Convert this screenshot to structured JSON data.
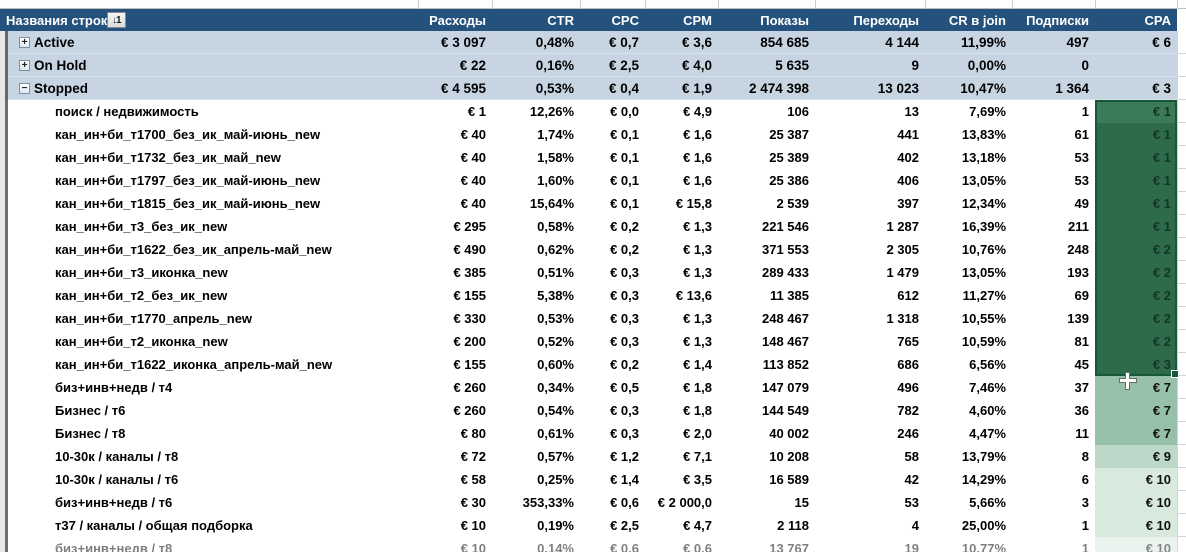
{
  "colors": {
    "header_bg": "#25527C",
    "header_text": "#FFFFFF",
    "group_row_bg": "#C7D5E2",
    "cpa_selected_green": "#2E6B4A",
    "cpa_selection_border": "#17573A",
    "cpa_green_mid": "#96C0A8",
    "cpa_green_light": "#BDD8C8",
    "cpa_green_pale": "#D8E9DE"
  },
  "header": {
    "row_label": "Названия строк",
    "filter_icon_label": "↓1",
    "columns": [
      {
        "key": "expenses",
        "label": "Расходы"
      },
      {
        "key": "ctr",
        "label": "CTR"
      },
      {
        "key": "cpc",
        "label": "CPC"
      },
      {
        "key": "cpm",
        "label": "CPM"
      },
      {
        "key": "impressions",
        "label": "Показы"
      },
      {
        "key": "clicks",
        "label": "Переходы"
      },
      {
        "key": "cr_join",
        "label": "CR в join"
      },
      {
        "key": "subs",
        "label": "Подписки"
      },
      {
        "key": "cpa",
        "label": "CPA"
      }
    ]
  },
  "summary_rows": [
    {
      "label": "Active",
      "expand": "collapsed",
      "values": [
        "€ 3 097",
        "0,48%",
        "€ 0,7",
        "€ 3,6",
        "854 685",
        "4 144",
        "11,99%",
        "497",
        "€ 6"
      ]
    },
    {
      "label": "On Hold",
      "expand": "collapsed",
      "values": [
        "€ 22",
        "0,16%",
        "€ 2,5",
        "€ 4,0",
        "5 635",
        "9",
        "0,00%",
        "0",
        ""
      ]
    },
    {
      "label": "Stopped",
      "expand": "expanded",
      "values": [
        "€ 4 595",
        "0,53%",
        "€ 0,4",
        "€ 1,9",
        "2 474 398",
        "13 023",
        "10,47%",
        "1 364",
        "€ 3"
      ]
    }
  ],
  "detail_rows": [
    {
      "label": "поиск / недвижимость",
      "values": [
        "€ 1",
        "12,26%",
        "€ 0,0",
        "€ 4,9",
        "106",
        "13",
        "7,69%",
        "1",
        "€ 1"
      ],
      "cpa_class": "sel-first"
    },
    {
      "label": "кан_ин+би_т1700_без_ик_май-июнь_new",
      "values": [
        "€ 40",
        "1,74%",
        "€ 0,1",
        "€ 1,6",
        "25 387",
        "441",
        "13,83%",
        "61",
        "€ 1"
      ],
      "cpa_class": "sel"
    },
    {
      "label": "кан_ин+би_т1732_без_ик_май_new",
      "values": [
        "€ 40",
        "1,58%",
        "€ 0,1",
        "€ 1,6",
        "25 389",
        "402",
        "13,18%",
        "53",
        "€ 1"
      ],
      "cpa_class": "sel"
    },
    {
      "label": "кан_ин+би_т1797_без_ик_май-июнь_new",
      "values": [
        "€ 40",
        "1,60%",
        "€ 0,1",
        "€ 1,6",
        "25 386",
        "406",
        "13,05%",
        "53",
        "€ 1"
      ],
      "cpa_class": "sel"
    },
    {
      "label": "кан_ин+би_т1815_без_ик_май-июнь_new",
      "values": [
        "€ 40",
        "15,64%",
        "€ 0,1",
        "€ 15,8",
        "2 539",
        "397",
        "12,34%",
        "49",
        "€ 1"
      ],
      "cpa_class": "sel"
    },
    {
      "label": "кан_ин+би_т3_без_ик_new",
      "values": [
        "€ 295",
        "0,58%",
        "€ 0,2",
        "€ 1,3",
        "221 546",
        "1 287",
        "16,39%",
        "211",
        "€ 1"
      ],
      "cpa_class": "sel"
    },
    {
      "label": "кан_ин+би_т1622_без_ик_апрель-май_new",
      "values": [
        "€ 490",
        "0,62%",
        "€ 0,2",
        "€ 1,3",
        "371 553",
        "2 305",
        "10,76%",
        "248",
        "€ 2"
      ],
      "cpa_class": "sel"
    },
    {
      "label": "кан_ин+би_т3_иконка_new",
      "values": [
        "€ 385",
        "0,51%",
        "€ 0,3",
        "€ 1,3",
        "289 433",
        "1 479",
        "13,05%",
        "193",
        "€ 2"
      ],
      "cpa_class": "sel"
    },
    {
      "label": "кан_ин+би_т2_без_ик_new",
      "values": [
        "€ 155",
        "5,38%",
        "€ 0,3",
        "€ 13,6",
        "11 385",
        "612",
        "11,27%",
        "69",
        "€ 2"
      ],
      "cpa_class": "sel"
    },
    {
      "label": "кан_ин+би_т1770_апрель_new",
      "values": [
        "€ 330",
        "0,53%",
        "€ 0,3",
        "€ 1,3",
        "248 467",
        "1 318",
        "10,55%",
        "139",
        "€ 2"
      ],
      "cpa_class": "sel"
    },
    {
      "label": "кан_ин+би_т2_иконка_new",
      "values": [
        "€ 200",
        "0,52%",
        "€ 0,3",
        "€ 1,3",
        "148 467",
        "765",
        "10,59%",
        "81",
        "€ 2"
      ],
      "cpa_class": "sel"
    },
    {
      "label": "кан_ин+би_т1622_иконка_апрель-май_new",
      "values": [
        "€ 155",
        "0,60%",
        "€ 0,2",
        "€ 1,4",
        "113 852",
        "686",
        "6,56%",
        "45",
        "€ 3"
      ],
      "cpa_class": "sel"
    },
    {
      "label": "биз+инв+недв / т4",
      "values": [
        "€ 260",
        "0,34%",
        "€ 0,5",
        "€ 1,8",
        "147 079",
        "496",
        "7,46%",
        "37",
        "€ 7"
      ],
      "cpa_class": "g7"
    },
    {
      "label": "Бизнес / т6",
      "values": [
        "€ 260",
        "0,54%",
        "€ 0,3",
        "€ 1,8",
        "144 549",
        "782",
        "4,60%",
        "36",
        "€ 7"
      ],
      "cpa_class": "g7"
    },
    {
      "label": "Бизнес / т8",
      "values": [
        "€ 80",
        "0,61%",
        "€ 0,3",
        "€ 2,0",
        "40 002",
        "246",
        "4,47%",
        "11",
        "€ 7"
      ],
      "cpa_class": "g7"
    },
    {
      "label": "10-30к / каналы / т8",
      "values": [
        "€ 72",
        "0,57%",
        "€ 1,2",
        "€ 7,1",
        "10 208",
        "58",
        "13,79%",
        "8",
        "€ 9"
      ],
      "cpa_class": "g9"
    },
    {
      "label": "10-30к / каналы / т6",
      "values": [
        "€ 58",
        "0,25%",
        "€ 1,4",
        "€ 3,5",
        "16 589",
        "42",
        "14,29%",
        "6",
        "€ 10"
      ],
      "cpa_class": "g10"
    },
    {
      "label": "биз+инв+недв / т6",
      "values": [
        "€ 30",
        "353,33%",
        "€ 0,6",
        "€ 2 000,0",
        "15",
        "53",
        "5,66%",
        "3",
        "€ 10"
      ],
      "cpa_class": "g10"
    },
    {
      "label": "т37 / каналы / общая подборка",
      "values": [
        "€ 10",
        "0,19%",
        "€ 2,5",
        "€ 4,7",
        "2 118",
        "4",
        "25,00%",
        "1",
        "€ 10"
      ],
      "cpa_class": "g10"
    }
  ],
  "partial_row": {
    "label": "биз+инв+недв / т8",
    "values": [
      "€ 10",
      "0,14%",
      "€ 0,6",
      "€ 0,6",
      "13 767",
      "19",
      "10,77%",
      "1",
      "€ 10"
    ],
    "cpa_class": "g10",
    "partial": true
  },
  "selection": {
    "range_column": "CPA",
    "rows_selected": 12
  }
}
